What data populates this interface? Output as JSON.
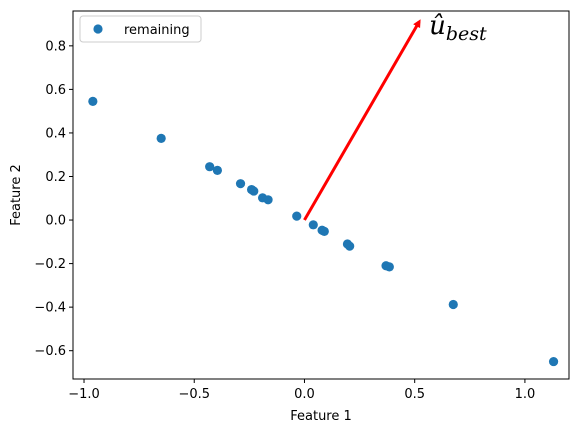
{
  "chart_data": {
    "type": "scatter",
    "xlabel": "Feature 1",
    "ylabel": "Feature 2",
    "xlim": [
      -1.05,
      1.2
    ],
    "ylim": [
      -0.73,
      0.96
    ],
    "x_ticks": [
      -1.0,
      -0.5,
      0.0,
      0.5,
      1.0
    ],
    "x_tick_labels": [
      "−1.0",
      "−0.5",
      "0.0",
      "0.5",
      "1.0"
    ],
    "y_ticks": [
      -0.6,
      -0.4,
      -0.2,
      0.0,
      0.2,
      0.4,
      0.6,
      0.8
    ],
    "y_tick_labels": [
      "−0.6",
      "−0.4",
      "−0.2",
      "0.0",
      "0.2",
      "0.4",
      "0.6",
      "0.8"
    ],
    "grid": false,
    "legend_position": "top-left",
    "series": [
      {
        "name": "remaining",
        "color": "#1f77b4",
        "points": [
          {
            "x": -0.96,
            "y": 0.545
          },
          {
            "x": -0.65,
            "y": 0.375
          },
          {
            "x": -0.43,
            "y": 0.245
          },
          {
            "x": -0.395,
            "y": 0.228
          },
          {
            "x": -0.29,
            "y": 0.167
          },
          {
            "x": -0.24,
            "y": 0.14
          },
          {
            "x": -0.23,
            "y": 0.133
          },
          {
            "x": -0.19,
            "y": 0.102
          },
          {
            "x": -0.165,
            "y": 0.093
          },
          {
            "x": -0.035,
            "y": 0.018
          },
          {
            "x": 0.04,
            "y": -0.022
          },
          {
            "x": 0.08,
            "y": -0.047
          },
          {
            "x": 0.09,
            "y": -0.052
          },
          {
            "x": 0.195,
            "y": -0.11
          },
          {
            "x": 0.205,
            "y": -0.12
          },
          {
            "x": 0.37,
            "y": -0.21
          },
          {
            "x": 0.385,
            "y": -0.215
          },
          {
            "x": 0.675,
            "y": -0.388
          },
          {
            "x": 1.13,
            "y": -0.65
          }
        ]
      }
    ],
    "annotations": [
      {
        "type": "arrow",
        "color": "#ff0000",
        "from": {
          "x": 0.0,
          "y": 0.0
        },
        "to": {
          "x": 0.52,
          "y": 0.91
        },
        "label": "û",
        "label_subscript": "best"
      }
    ]
  }
}
